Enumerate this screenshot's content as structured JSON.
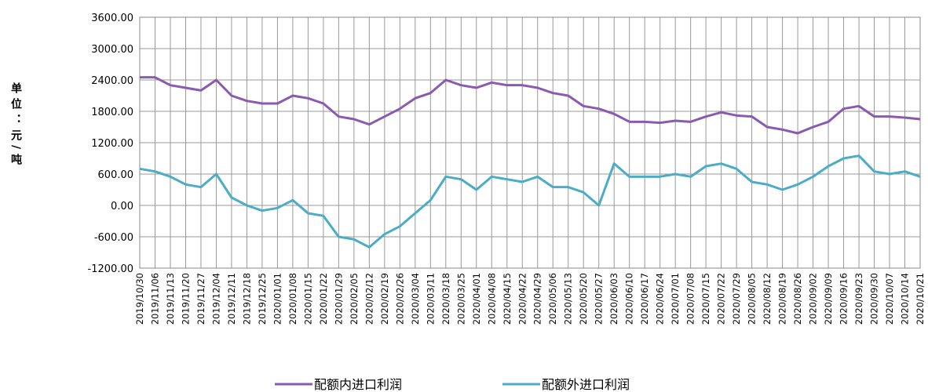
{
  "chart_data": {
    "type": "line",
    "y_label": "单位：元/吨",
    "categories": [
      "2019/10/30",
      "2019/11/06",
      "2019/11/13",
      "2019/11/20",
      "2019/11/27",
      "2019/12/04",
      "2019/12/11",
      "2019/12/18",
      "2019/12/25",
      "2020/01/01",
      "2020/01/08",
      "2020/01/15",
      "2020/01/22",
      "2020/01/29",
      "2020/02/05",
      "2020/02/12",
      "2020/02/19",
      "2020/02/26",
      "2020/03/04",
      "2020/03/11",
      "2020/03/18",
      "2020/03/25",
      "2020/04/01",
      "2020/04/08",
      "2020/04/15",
      "2020/04/22",
      "2020/04/29",
      "2020/05/06",
      "2020/05/13",
      "2020/05/20",
      "2020/05/27",
      "2020/06/03",
      "2020/06/10",
      "2020/06/17",
      "2020/06/24",
      "2020/07/01",
      "2020/07/08",
      "2020/07/15",
      "2020/07/22",
      "2020/07/29",
      "2020/08/05",
      "2020/08/12",
      "2020/08/19",
      "2020/08/26",
      "2020/09/02",
      "2020/09/09",
      "2020/09/16",
      "2020/09/23",
      "2020/09/30",
      "2020/10/07",
      "2020/10/14",
      "2020/10/21"
    ],
    "series": [
      {
        "name": "配额内进口利润",
        "color": "#8a5ab0",
        "values": [
          2450,
          2450,
          2300,
          2250,
          2200,
          2400,
          2100,
          2000,
          1950,
          1950,
          2100,
          2050,
          1950,
          1700,
          1650,
          1550,
          1700,
          1850,
          2050,
          2150,
          2400,
          2300,
          2250,
          2350,
          2300,
          2300,
          2250,
          2150,
          2100,
          1900,
          1850,
          1750,
          1600,
          1600,
          1580,
          1620,
          1600,
          1700,
          1780,
          1720,
          1700,
          1500,
          1450,
          1380,
          1500,
          1600,
          1850,
          1900,
          1700,
          1700,
          1680,
          1650
        ]
      },
      {
        "name": "配额外进口利润",
        "color": "#4bacc6",
        "values": [
          700,
          650,
          550,
          400,
          350,
          600,
          150,
          0,
          -100,
          -50,
          100,
          -150,
          -200,
          -600,
          -650,
          -800,
          -550,
          -400,
          -150,
          100,
          550,
          500,
          300,
          550,
          500,
          450,
          550,
          350,
          350,
          250,
          0,
          800,
          550,
          550,
          550,
          600,
          550,
          750,
          800,
          700,
          450,
          400,
          300,
          400,
          550,
          750,
          900,
          950,
          650,
          600,
          650,
          550
        ]
      }
    ],
    "ylim": [
      -1200,
      3600
    ],
    "yticks": [
      {
        "value": -1200,
        "label": "-1200.00"
      },
      {
        "value": -600,
        "label": "-600.00"
      },
      {
        "value": 0,
        "label": "0.00"
      },
      {
        "value": 600,
        "label": "600.00"
      },
      {
        "value": 1200,
        "label": "1200.00"
      },
      {
        "value": 1800,
        "label": "1800.00"
      },
      {
        "value": 2400,
        "label": "2400.00"
      },
      {
        "value": 3000,
        "label": "3000.00"
      },
      {
        "value": 3600,
        "label": "3600.00"
      }
    ],
    "grid": true
  }
}
